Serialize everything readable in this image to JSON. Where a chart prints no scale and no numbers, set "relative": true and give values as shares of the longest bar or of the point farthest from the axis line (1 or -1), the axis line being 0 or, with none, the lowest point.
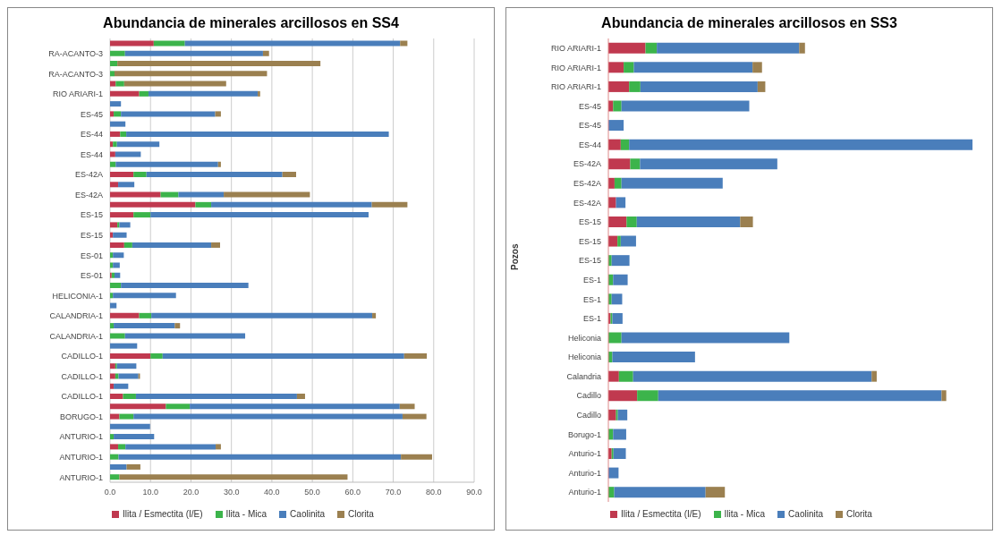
{
  "chart_data": [
    {
      "type": "bar",
      "orientation": "horizontal",
      "stacked": true,
      "title": "Abundancia de minerales arcillosos en SS4",
      "categories": [
        null,
        "RA-ACANTO-3",
        null,
        "RA-ACANTO-3",
        null,
        "RIO ARIARI-1",
        null,
        "ES-45",
        null,
        "ES-44",
        null,
        "ES-44",
        null,
        "ES-42A",
        null,
        "ES-42A",
        null,
        "ES-15",
        null,
        "ES-15",
        null,
        "ES-01",
        null,
        "ES-01",
        null,
        "HELICONIA-1",
        null,
        "CALANDRIA-1",
        null,
        "CALANDRIA-1",
        null,
        "CADILLO-1",
        null,
        "CADILLO-1",
        null,
        "CADILLO-1",
        null,
        "BORUGO-1",
        null,
        "ANTURIO-1",
        null,
        "ANTURIO-1",
        null,
        "ANTURIO-1"
      ],
      "series": [
        {
          "name": "Ilita / Esmectita (I/E)",
          "color": "#c0394f",
          "values": [
            10.8,
            null,
            null,
            null,
            1.4,
            7.2,
            null,
            0.9,
            null,
            2.5,
            0.7,
            1.3,
            null,
            5.8,
            2.0,
            12.5,
            21.1,
            5.8,
            1.8,
            0.7,
            3.5,
            null,
            null,
            0.4,
            null,
            null,
            null,
            7.2,
            null,
            null,
            null,
            10.0,
            1.3,
            1.3,
            0.9,
            3.2,
            13.8,
            2.3,
            null,
            null,
            2.0,
            null,
            null,
            null
          ]
        },
        {
          "name": "Ilita - Mica",
          "color": "#3cb44b",
          "values": [
            7.7,
            3.7,
            1.8,
            1.1,
            2.1,
            2.3,
            null,
            1.8,
            null,
            1.5,
            1.0,
            null,
            1.4,
            3.2,
            null,
            4.4,
            3.9,
            4.2,
            0.5,
            null,
            2.0,
            0.7,
            0.7,
            0.7,
            2.7,
            0.7,
            null,
            3.0,
            0.9,
            3.7,
            null,
            3.0,
            0.4,
            0.8,
            null,
            3.2,
            5.9,
            3.5,
            null,
            0.9,
            1.8,
            2.1,
            null,
            2.3
          ]
        },
        {
          "name": "Caolinita",
          "color": "#4a7ebb",
          "values": [
            53.2,
            34.1,
            null,
            null,
            null,
            27.0,
            2.7,
            23.3,
            3.8,
            64.9,
            10.5,
            6.3,
            25.3,
            33.6,
            4.0,
            11.2,
            39.7,
            53.9,
            2.7,
            3.4,
            19.5,
            2.7,
            1.7,
            1.4,
            31.5,
            15.6,
            1.6,
            54.6,
            15.1,
            29.7,
            6.7,
            59.7,
            4.8,
            4.9,
            3.6,
            39.8,
            51.9,
            66.5,
            9.9,
            10.0,
            22.3,
            69.8,
            4.1,
            null
          ]
        },
        {
          "name": "Clorita",
          "color": "#9b8050",
          "values": [
            1.8,
            1.5,
            50.2,
            37.7,
            25.2,
            0.6,
            null,
            1.4,
            null,
            null,
            null,
            null,
            0.7,
            3.4,
            null,
            21.3,
            8.8,
            null,
            null,
            null,
            2.2,
            null,
            null,
            null,
            null,
            null,
            null,
            0.9,
            1.3,
            null,
            null,
            5.6,
            null,
            0.4,
            null,
            2.0,
            3.7,
            5.9,
            null,
            null,
            1.3,
            7.7,
            3.4,
            56.4
          ]
        }
      ],
      "xlim": [
        0,
        90
      ],
      "xticks": [
        {
          "value": 0,
          "label": "0.0"
        },
        {
          "value": 10,
          "label": "10.0"
        },
        {
          "value": 20,
          "label": "20.0"
        },
        {
          "value": 30,
          "label": "30.0"
        },
        {
          "value": 40,
          "label": "40.0"
        },
        {
          "value": 50,
          "label": "50.0"
        },
        {
          "value": 60,
          "label": "60.0"
        },
        {
          "value": 70,
          "label": "70.0"
        },
        {
          "value": 80,
          "label": "80.0"
        },
        {
          "value": 90,
          "label": "90.0"
        }
      ],
      "grid": "x",
      "legend": "bottom"
    },
    {
      "type": "bar",
      "orientation": "horizontal",
      "stacked": true,
      "relative": true,
      "title": "Abundancia de minerales arcillosos en SS3",
      "ylabel": "Pozos",
      "categories": [
        "RIO ARIARI-1",
        "RIO ARIARI-1",
        "RIO ARIARI-1",
        "ES-45",
        "ES-45",
        "ES-44",
        "ES-42A",
        "ES-42A",
        "ES-42A",
        "ES-15",
        "ES-15",
        "ES-15",
        "ES-1",
        "ES-1",
        "ES-1",
        "Heliconia",
        "Heliconia",
        "Calandria",
        "Cadillo",
        "Cadillo",
        "Borugo-1",
        "Anturio-1",
        "Anturio-1",
        "Anturio-1"
      ],
      "series": [
        {
          "name": "Ilita / Esmectita (I/E)",
          "color": "#c0394f",
          "values": [
            0.102,
            0.042,
            0.057,
            0.013,
            null,
            0.034,
            0.06,
            0.017,
            0.021,
            0.05,
            0.025,
            null,
            null,
            null,
            0.006,
            null,
            null,
            0.029,
            0.079,
            0.021,
            null,
            0.009,
            null,
            null
          ]
        },
        {
          "name": "Ilita - Mica",
          "color": "#3cb44b",
          "values": [
            0.031,
            0.028,
            0.031,
            0.023,
            null,
            0.023,
            0.027,
            0.019,
            null,
            0.028,
            0.009,
            0.009,
            0.013,
            0.009,
            0.005,
            0.036,
            0.011,
            0.039,
            0.058,
            0.005,
            0.013,
            0.005,
            null,
            0.016
          ]
        },
        {
          "name": "Caolinita",
          "color": "#4a7ebb",
          "values": [
            0.391,
            0.326,
            0.322,
            0.351,
            0.042,
            0.943,
            0.377,
            0.278,
            0.026,
            0.284,
            0.042,
            0.049,
            0.04,
            0.029,
            0.028,
            0.461,
            0.227,
            0.655,
            0.778,
            0.026,
            0.036,
            0.034,
            0.028,
            0.251
          ]
        },
        {
          "name": "Clorita",
          "color": "#9b8050",
          "values": [
            0.016,
            0.026,
            0.021,
            null,
            null,
            null,
            null,
            null,
            null,
            0.035,
            null,
            null,
            null,
            null,
            null,
            null,
            null,
            0.014,
            0.013,
            null,
            null,
            null,
            null,
            0.053
          ]
        }
      ],
      "legend": "bottom"
    }
  ]
}
